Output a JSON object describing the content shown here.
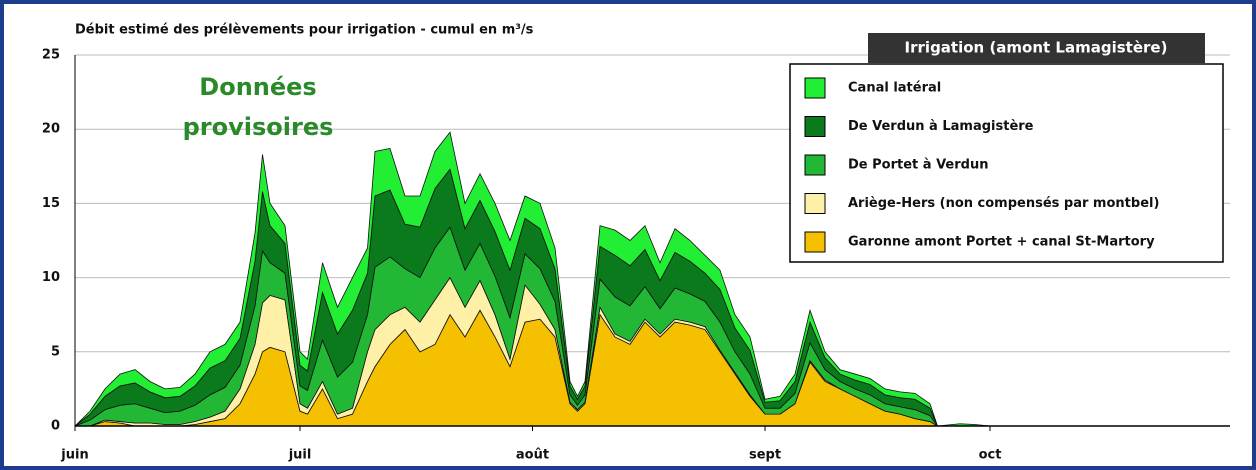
{
  "chart_data": {
    "type": "stacked_area",
    "title": "Débit estimé des prélèvements pour irrigation - cumul en m³/s",
    "box_label": "Irrigation (amont Lamagistère)",
    "annotation": [
      "Données",
      "provisoires"
    ],
    "x": [
      0,
      2,
      4,
      6,
      8,
      10,
      12,
      14,
      16,
      18,
      20,
      22,
      24,
      25,
      26,
      28,
      30,
      31,
      33,
      35,
      37,
      39,
      40,
      42,
      44,
      46,
      48,
      50,
      52,
      54,
      56,
      58,
      60,
      62,
      64,
      66,
      67,
      68,
      70,
      72,
      74,
      76,
      78,
      80,
      82,
      84,
      86,
      88,
      90,
      92,
      94,
      96,
      98,
      100,
      102,
      104,
      106,
      108,
      110,
      112,
      114,
      115,
      118,
      120,
      122
    ],
    "xlim": [
      0,
      154
    ],
    "xticks": [
      {
        "value": 0,
        "label": "juin"
      },
      {
        "value": 30,
        "label": "juil"
      },
      {
        "value": 61,
        "label": "août"
      },
      {
        "value": 92,
        "label": "sept"
      },
      {
        "value": 122,
        "label": "oct"
      }
    ],
    "ylim": [
      0,
      25
    ],
    "yticks": [
      0,
      5,
      10,
      15,
      20,
      25
    ],
    "grid": true,
    "legend": "upper right",
    "series": [
      {
        "name": "Canal latéral",
        "color": "#22ee33",
        "values": [
          0,
          0.2,
          0.5,
          0.8,
          0.9,
          0.7,
          0.6,
          0.6,
          0.8,
          1.1,
          1.1,
          1.1,
          1.9,
          2.5,
          1.5,
          1.2,
          0.9,
          0.8,
          2,
          1.8,
          2.2,
          1.7,
          3,
          2.8,
          1.9,
          2.1,
          2.5,
          2.5,
          1.7,
          1.8,
          1.9,
          2,
          1.5,
          1.7,
          1.4,
          0.3,
          0.2,
          0.3,
          1.4,
          1.7,
          1.7,
          1.6,
          1.2,
          1.6,
          1.4,
          1.2,
          1.3,
          0.9,
          0.9,
          0.2,
          0.3,
          0.5,
          0.8,
          0.4,
          0.3,
          0.4,
          0.4,
          0.4,
          0.4,
          0.4,
          0.3,
          0,
          0.15,
          0.1,
          0
        ]
      },
      {
        "name": "De Verdun à Lamagistère",
        "color": "#0b7a1c",
        "values": [
          0,
          0.4,
          0.9,
          1.3,
          1.4,
          1.1,
          1,
          1,
          1.3,
          1.8,
          1.8,
          1.8,
          3,
          4,
          2.5,
          2,
          1.4,
          1.3,
          3.2,
          2.9,
          3.5,
          2.8,
          4.8,
          4.5,
          3,
          3.4,
          4,
          3.9,
          2.8,
          2.9,
          3,
          3.2,
          2.4,
          2.7,
          2.2,
          0.6,
          0.4,
          0.6,
          2.2,
          2.8,
          2.7,
          2.5,
          1.9,
          2.4,
          2.2,
          1.9,
          2.2,
          1.6,
          1.6,
          0.4,
          0.5,
          0.8,
          1.4,
          0.8,
          0.5,
          0.6,
          0.7,
          0.6,
          0.6,
          0.7,
          0.5,
          0,
          0,
          0,
          0
        ]
      },
      {
        "name": "De Portet à Verdun",
        "color": "#22b835",
        "values": [
          0,
          0.4,
          0.7,
          1.1,
          1.3,
          1,
          0.8,
          0.9,
          1.1,
          1.5,
          1.6,
          1.6,
          2.6,
          3.5,
          2.2,
          1.8,
          1.2,
          1.2,
          2.8,
          2.5,
          3.1,
          2.5,
          4.2,
          3.9,
          2.6,
          3,
          3.5,
          3.4,
          2.5,
          2.5,
          2.6,
          2.8,
          2.1,
          2.4,
          1.9,
          0.5,
          0.3,
          0.5,
          1.9,
          2.5,
          2.4,
          2.2,
          1.7,
          2.1,
          1.9,
          1.7,
          1.9,
          1.4,
          1.4,
          0.4,
          0.4,
          0.7,
          1.2,
          0.7,
          0.5,
          0.5,
          0.6,
          0.5,
          0.5,
          0.6,
          0.4,
          0,
          0,
          0,
          0
        ]
      },
      {
        "name": "Ariège-Hers (non compensés par montbel)",
        "color": "#fff0a8",
        "values": [
          0,
          0,
          0.1,
          0.1,
          0.2,
          0.2,
          0.1,
          0.1,
          0.2,
          0.3,
          0.5,
          1,
          2,
          3.3,
          3.5,
          3.5,
          0.5,
          0.4,
          0.5,
          0.3,
          0.4,
          2,
          2.5,
          2,
          1.5,
          2,
          3,
          2.5,
          2,
          2,
          1.5,
          0.5,
          2.5,
          1,
          0.5,
          0.1,
          0.1,
          0.1,
          0.5,
          0.2,
          0.2,
          0.2,
          0.2,
          0.2,
          0.2,
          0.2,
          0.1,
          0.1,
          0.1,
          0,
          0,
          0,
          0.1,
          0.1,
          0,
          0,
          0,
          0,
          0,
          0,
          0,
          0,
          0,
          0,
          0
        ]
      },
      {
        "name": "Garonne amont Portet + canal St-Martory",
        "color": "#f5c000",
        "values": [
          0,
          0,
          0.3,
          0.2,
          0,
          0,
          0,
          0,
          0.1,
          0.3,
          0.5,
          1.5,
          3.5,
          5,
          5.3,
          5,
          1,
          0.8,
          2.5,
          0.5,
          0.8,
          3,
          4,
          5.5,
          6.5,
          5,
          5.5,
          7.5,
          6,
          7.8,
          6,
          4,
          7,
          7.2,
          6,
          1.5,
          1,
          1.5,
          7.5,
          6,
          5.5,
          7,
          6,
          7,
          6.8,
          6.5,
          5,
          3.5,
          2,
          0.8,
          0.8,
          1.5,
          4.3,
          3,
          2.5,
          2,
          1.5,
          1,
          0.8,
          0.5,
          0.3,
          0,
          0,
          0,
          0
        ]
      }
    ]
  }
}
